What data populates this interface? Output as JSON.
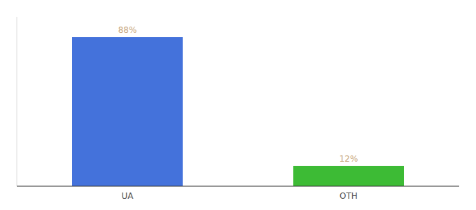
{
  "chart_data": {
    "type": "bar",
    "categories": [
      "UA",
      "OTH"
    ],
    "values": [
      88,
      12
    ],
    "colors": [
      "#4472db",
      "#3dbb35"
    ],
    "value_labels": [
      "88%",
      "12%"
    ],
    "data_labels": true,
    "ylim": [
      0,
      100
    ],
    "tick_labels": "x",
    "grid": false
  }
}
